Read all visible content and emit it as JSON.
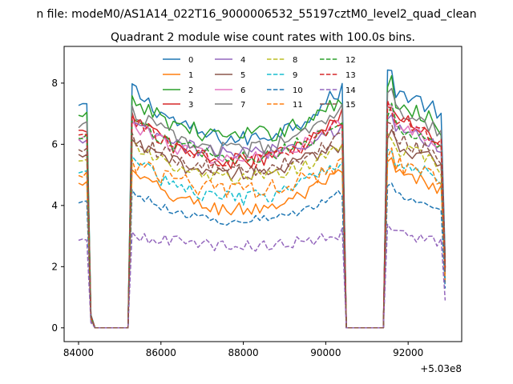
{
  "chart_data": {
    "type": "line",
    "suptitle": "n file: modeM0/AS1A14_022T16_9000006532_55197cztM0_level2_quad_clean",
    "title": "Quadrant 2 module wise count rates with 100.0s bins.",
    "xlabel": "",
    "ylabel": "",
    "x_offset_label": "+5.03e8",
    "xlim": [
      83650,
      93300
    ],
    "ylim": [
      -0.45,
      9.2
    ],
    "x_ticks": [
      84000,
      86000,
      88000,
      90000,
      92000
    ],
    "x_tick_labels": [
      "84000",
      "86000",
      "88000",
      "90000",
      "92000"
    ],
    "y_ticks": [
      0,
      2,
      4,
      6,
      8
    ],
    "y_tick_labels": [
      "0",
      "2",
      "4",
      "6",
      "8"
    ],
    "legend_position": "top-center",
    "grid": false,
    "bins": {
      "segment1_x": [
        84000,
        84100,
        84200,
        84300,
        84400
      ],
      "segment1_offset": [
        1.0,
        1.0,
        1.01,
        0.06,
        0.0
      ],
      "gap1_x": [
        84500,
        85200
      ],
      "segment2_x_start": 85300,
      "segment2_x_end": 90400,
      "segment2_step": 100,
      "gap2_x": [
        90500,
        91400
      ],
      "segment3_x": [
        91500,
        91600,
        91700,
        91800,
        91900,
        92000,
        92100,
        92200,
        92300,
        92400,
        92500,
        92600,
        92700,
        92800,
        92900
      ],
      "segment3_shape": [
        1.02,
        1.03,
        0.96,
        0.95,
        0.94,
        0.93,
        0.92,
        0.92,
        0.91,
        0.9,
        0.89,
        0.88,
        0.87,
        0.85,
        0.28
      ]
    },
    "series": [
      {
        "name": "0",
        "color": "#1f77b4",
        "dash": "solid",
        "level": 7.25,
        "mid_level": 6.7,
        "noise": 0.28
      },
      {
        "name": "1",
        "color": "#ff7f0e",
        "dash": "solid",
        "level": 4.7,
        "mid_level": 4.2,
        "noise": 0.25
      },
      {
        "name": "2",
        "color": "#2ca02c",
        "dash": "solid",
        "level": 6.9,
        "mid_level": 6.8,
        "noise": 0.3
      },
      {
        "name": "3",
        "color": "#d62728",
        "dash": "solid",
        "level": 6.4,
        "mid_level": 5.9,
        "noise": 0.28
      },
      {
        "name": "4",
        "color": "#9467bd",
        "dash": "solid",
        "level": 6.1,
        "mid_level": 6.2,
        "noise": 0.25
      },
      {
        "name": "5",
        "color": "#8c564b",
        "dash": "solid",
        "level": 5.6,
        "mid_level": 5.5,
        "noise": 0.25
      },
      {
        "name": "6",
        "color": "#e377c2",
        "dash": "solid",
        "level": 6.2,
        "mid_level": 6.0,
        "noise": 0.25
      },
      {
        "name": "7",
        "color": "#7f7f7f",
        "dash": "solid",
        "level": 6.6,
        "mid_level": 6.3,
        "noise": 0.25
      },
      {
        "name": "8",
        "color": "#bcbd22",
        "dash": "dashed",
        "level": 5.5,
        "mid_level": 5.3,
        "noise": 0.25
      },
      {
        "name": "9",
        "color": "#17becf",
        "dash": "dashed",
        "level": 5.1,
        "mid_level": 4.6,
        "noise": 0.25
      },
      {
        "name": "10",
        "color": "#1f77b4",
        "dash": "dashed",
        "level": 4.1,
        "mid_level": 3.8,
        "noise": 0.15
      },
      {
        "name": "11",
        "color": "#ff7f0e",
        "dash": "dashed",
        "level": 5.0,
        "mid_level": 4.9,
        "noise": 0.3
      },
      {
        "name": "12",
        "color": "#2ca02c",
        "dash": "dashed",
        "level": 6.2,
        "mid_level": 6.1,
        "noise": 0.25
      },
      {
        "name": "13",
        "color": "#d62728",
        "dash": "dashed",
        "level": 6.3,
        "mid_level": 5.9,
        "noise": 0.25
      },
      {
        "name": "14",
        "color": "#9467bd",
        "dash": "dashed",
        "level": 2.85,
        "mid_level": 2.9,
        "noise": 0.2
      },
      {
        "name": "15",
        "color": "#8c564b",
        "dash": "dashed",
        "level": 5.8,
        "mid_level": 5.6,
        "noise": 0.25
      }
    ]
  }
}
